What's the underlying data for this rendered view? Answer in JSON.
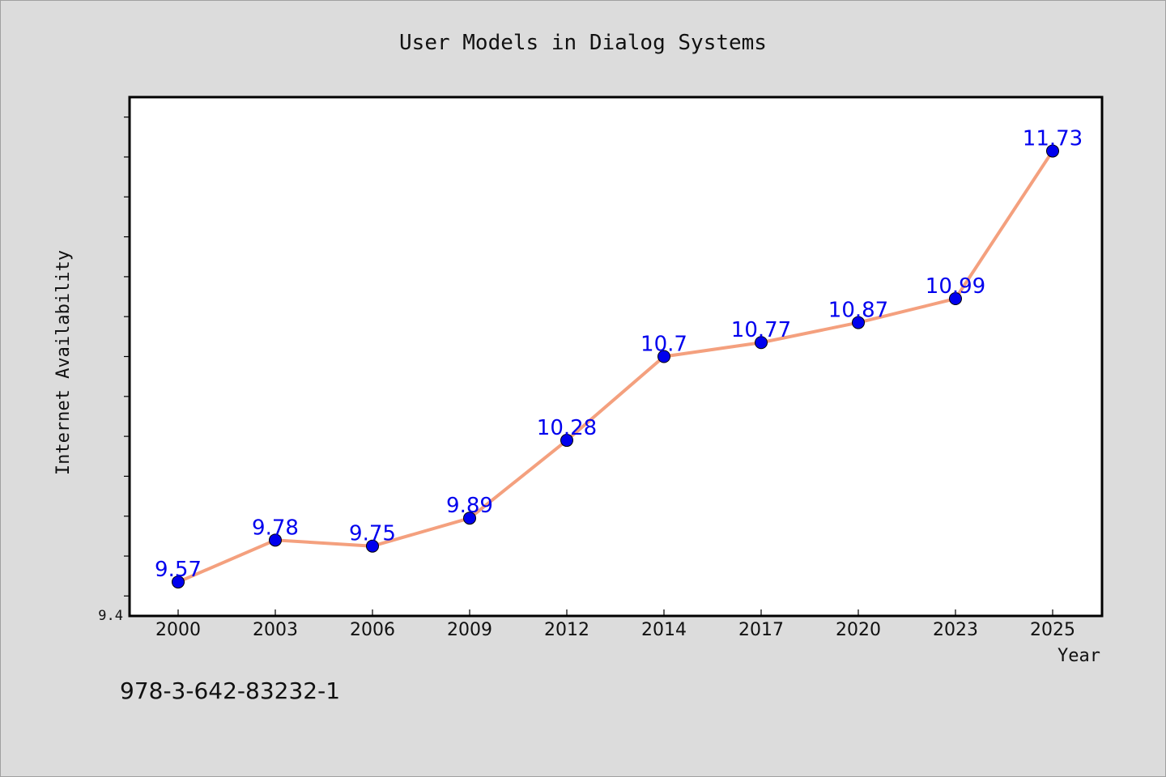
{
  "chart_data": {
    "type": "line",
    "title": "User Models in Dialog Systems",
    "xlabel": "Year",
    "ylabel": "Internet Availability",
    "categories": [
      "2000",
      "2003",
      "2006",
      "2009",
      "2012",
      "2014",
      "2017",
      "2020",
      "2023",
      "2025"
    ],
    "series": [
      {
        "values": [
          9.57,
          9.78,
          9.75,
          9.89,
          10.28,
          10.7,
          10.77,
          10.87,
          10.99,
          11.73
        ],
        "value_labels": [
          "9.57",
          "9.78",
          "9.75",
          "9.89",
          "10.28",
          "10.7",
          "10.77",
          "10.87",
          "10.99",
          "11.73"
        ],
        "line_color": "#f4a07e",
        "marker_color": "#0000ee",
        "label_color": "#0000ee"
      }
    ],
    "y_tick_labels": [
      "9.4"
    ],
    "ylim": [
      9.4,
      12.0
    ],
    "grid": false,
    "legend": "none"
  },
  "footnote": "978-3-642-83232-1",
  "colors": {
    "background": "#dcdcdc",
    "plot_area": "#ffffff",
    "axis": "#000000"
  }
}
